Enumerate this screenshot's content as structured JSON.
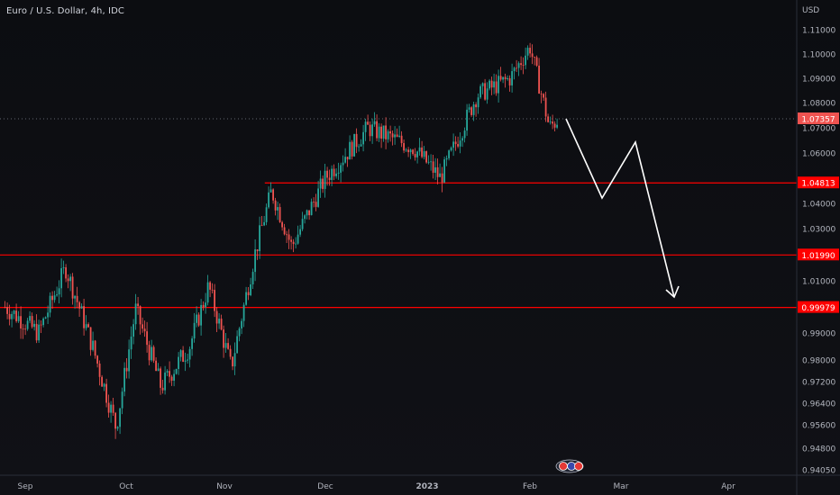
{
  "header": {
    "title": "Euro / U.S. Dollar, 4h, IDC"
  },
  "chart_data": {
    "type": "candlestick",
    "currency": "USD",
    "y_ticks": [
      "1.11000",
      "1.10000",
      "1.09000",
      "1.08000",
      "1.07000",
      "1.06000",
      "1.04000",
      "1.03000",
      "1.01000",
      "0.99000",
      "0.98000",
      "0.97200",
      "0.96400",
      "0.95600",
      "0.94800",
      "0.94050"
    ],
    "x_ticks": [
      "Sep",
      "Oct",
      "Nov",
      "Dec",
      "2023",
      "Feb",
      "Mar",
      "Apr"
    ],
    "last_price": "1.07357",
    "levels": [
      {
        "value": 1.04813,
        "label": "1.04813"
      },
      {
        "value": 1.0199,
        "label": "1.01990"
      },
      {
        "value": 0.99979,
        "label": "0.99979"
      }
    ],
    "series": [
      {
        "name": "EURUSD",
        "approx_close_path": [
          [
            "2022-08-26",
            1.0
          ],
          [
            "2022-09-05",
            0.99
          ],
          [
            "2022-09-13",
            1.015
          ],
          [
            "2022-09-21",
            0.985
          ],
          [
            "2022-09-28",
            0.955
          ],
          [
            "2022-10-04",
            0.999
          ],
          [
            "2022-10-12",
            0.97
          ],
          [
            "2022-10-21",
            0.985
          ],
          [
            "2022-10-27",
            1.008
          ],
          [
            "2022-11-03",
            0.977
          ],
          [
            "2022-11-10",
            1.02
          ],
          [
            "2022-11-15",
            1.045
          ],
          [
            "2022-11-21",
            1.023
          ],
          [
            "2022-12-01",
            1.05
          ],
          [
            "2022-12-14",
            1.07
          ],
          [
            "2022-12-28",
            1.062
          ],
          [
            "2023-01-05",
            1.05
          ],
          [
            "2023-01-16",
            1.083
          ],
          [
            "2023-01-26",
            1.09
          ],
          [
            "2023-02-01",
            1.103
          ],
          [
            "2023-02-07",
            1.07
          ],
          [
            "2023-02-10",
            1.074
          ]
        ]
      }
    ],
    "annotation": "projection arrow",
    "colors": {
      "up": "#26a69a",
      "down": "#ef5350",
      "level": "#ff0000",
      "projection": "#ffffff",
      "axis_text": "#b2b5be"
    }
  }
}
